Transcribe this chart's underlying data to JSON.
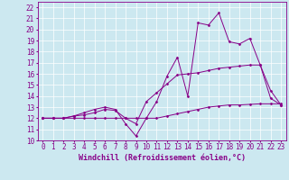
{
  "xlabel": "Windchill (Refroidissement éolien,°C)",
  "xlim": [
    -0.5,
    23.5
  ],
  "ylim": [
    10,
    22.5
  ],
  "xticks": [
    0,
    1,
    2,
    3,
    4,
    5,
    6,
    7,
    8,
    9,
    10,
    11,
    12,
    13,
    14,
    15,
    16,
    17,
    18,
    19,
    20,
    21,
    22,
    23
  ],
  "yticks": [
    10,
    11,
    12,
    13,
    14,
    15,
    16,
    17,
    18,
    19,
    20,
    21,
    22
  ],
  "bg_color": "#cce8f0",
  "line_color": "#880088",
  "line1_x": [
    0,
    1,
    2,
    3,
    4,
    5,
    6,
    7,
    8,
    9,
    10,
    11,
    12,
    13,
    14,
    15,
    16,
    17,
    18,
    19,
    20,
    21,
    22,
    23
  ],
  "line1_y": [
    12,
    12,
    12,
    12,
    12,
    12,
    12,
    12,
    12,
    12,
    12,
    12,
    12.2,
    12.4,
    12.6,
    12.8,
    13.0,
    13.1,
    13.2,
    13.2,
    13.25,
    13.3,
    13.3,
    13.3
  ],
  "line2_x": [
    0,
    1,
    2,
    3,
    4,
    5,
    6,
    7,
    8,
    9,
    10,
    11,
    12,
    13,
    14,
    15,
    16,
    17,
    18,
    19,
    20,
    21,
    22,
    23
  ],
  "line2_y": [
    12,
    12,
    12,
    12.2,
    12.3,
    12.5,
    12.8,
    12.7,
    12.0,
    11.5,
    13.5,
    14.3,
    15.1,
    15.9,
    16.0,
    16.1,
    16.3,
    16.5,
    16.6,
    16.7,
    16.8,
    16.8,
    13.8,
    13.2
  ],
  "line3_x": [
    0,
    1,
    2,
    3,
    4,
    5,
    6,
    7,
    8,
    9,
    10,
    11,
    12,
    13,
    14,
    15,
    16,
    17,
    18,
    19,
    20,
    21,
    22,
    23
  ],
  "line3_y": [
    12,
    12,
    12,
    12.2,
    12.5,
    12.8,
    13.0,
    12.8,
    11.5,
    10.4,
    12.0,
    13.5,
    15.8,
    17.5,
    14.0,
    20.6,
    20.4,
    21.5,
    18.9,
    18.7,
    19.2,
    16.8,
    14.5,
    13.2
  ],
  "font_size": 5.5,
  "marker": "D",
  "marker_size": 1.5,
  "line_width": 0.7
}
